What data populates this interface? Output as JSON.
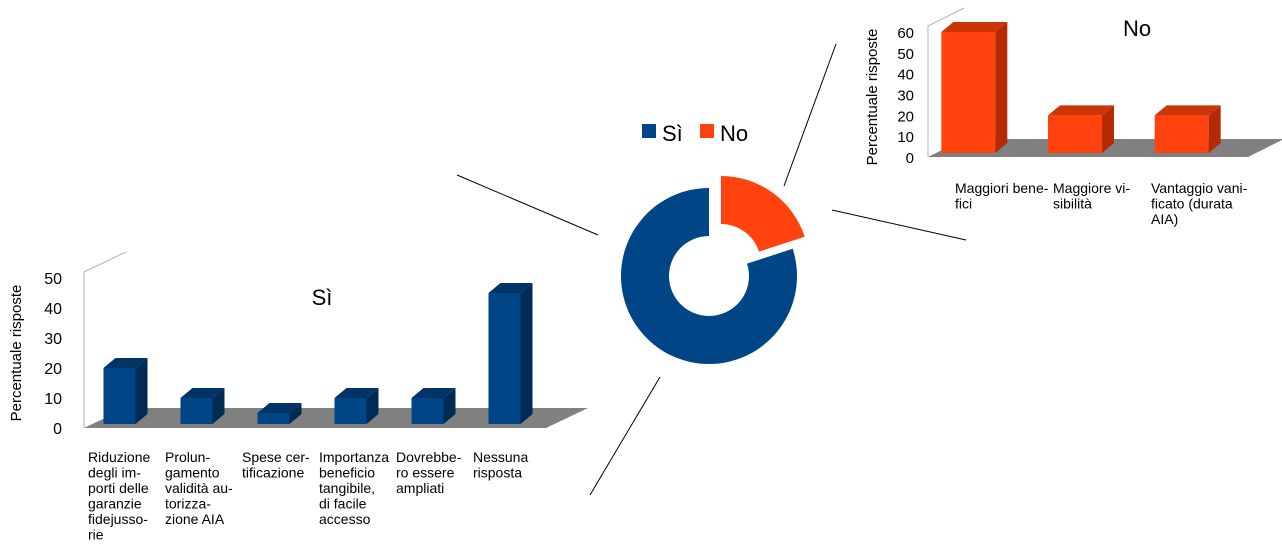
{
  "colors": {
    "si": "#004586",
    "si_dark": "#002b55",
    "si_side": "#003366",
    "no": "#ff420e",
    "no_dark": "#b32a05",
    "no_side": "#cc3508",
    "floor": "#808080",
    "wall_edge": "#b3b3b3",
    "leader": "#000000"
  },
  "chart_data": [
    {
      "type": "pie",
      "variant": "donut-exploded",
      "legend_position": "top",
      "categories": [
        "Sì",
        "No"
      ],
      "values": [
        80,
        20
      ]
    },
    {
      "type": "bar",
      "style": "3d",
      "title": "Sì",
      "ylabel": "Percentuale risposte",
      "ylim": [
        0,
        50
      ],
      "yticks": [
        0,
        10,
        20,
        30,
        40,
        50
      ],
      "grid": false,
      "categories": [
        [
          "Riduzione",
          "degli im-",
          "porti delle",
          "garanzie",
          "fidejusso-",
          "rie"
        ],
        [
          "Prolun-",
          "gamento",
          "validità au-",
          "torizza-",
          "zione AIA"
        ],
        [
          "Spese cer-",
          "tificazione"
        ],
        [
          "Importanza",
          "beneficio",
          "tangibile,",
          "di facile",
          "accesso"
        ],
        [
          "Dovrebbe-",
          "ro essere",
          "ampliati"
        ],
        [
          "Nessuna",
          "risposta"
        ]
      ],
      "values": [
        20,
        10,
        5,
        10,
        10,
        45
      ]
    },
    {
      "type": "bar",
      "style": "3d",
      "title": "No",
      "ylabel": "Percentuale risposte",
      "ylim": [
        0,
        60
      ],
      "yticks": [
        0,
        10,
        20,
        30,
        40,
        50,
        60
      ],
      "grid": false,
      "categories": [
        [
          "Maggiori bene-",
          "fici"
        ],
        [
          "Maggiore vi-",
          "sibilità"
        ],
        [
          "Vantaggio vani-",
          "ficato (durata",
          "AIA)"
        ]
      ],
      "values": [
        60,
        20,
        20
      ]
    }
  ]
}
